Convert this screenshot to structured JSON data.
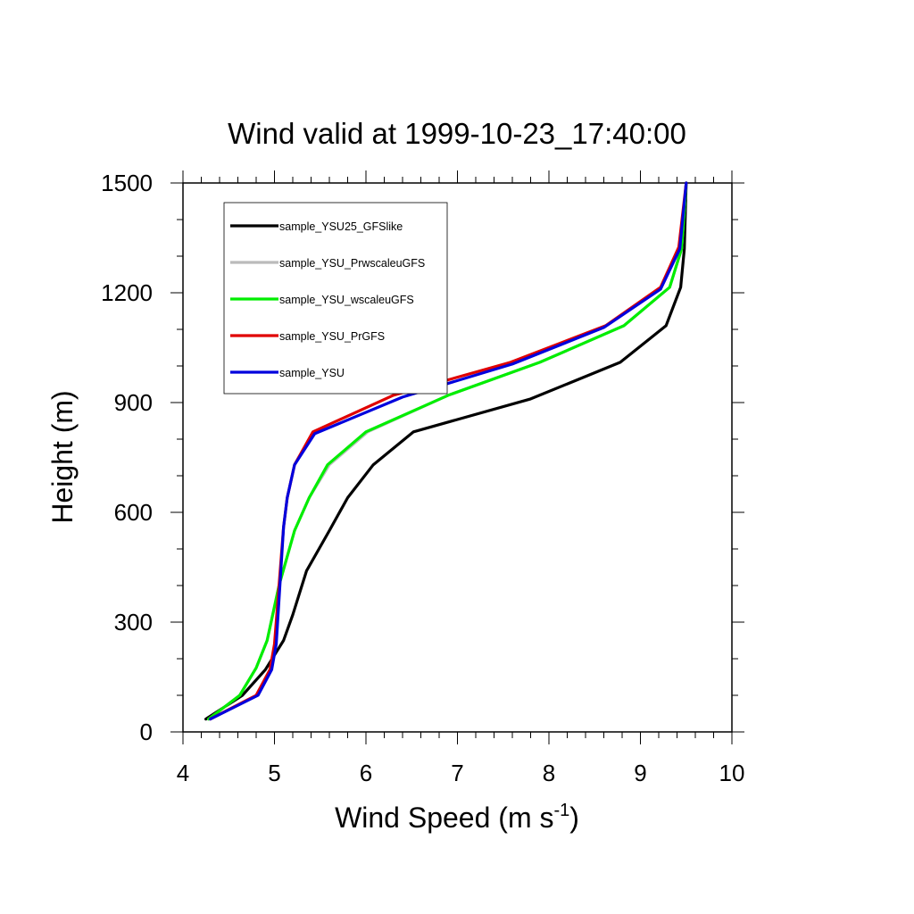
{
  "chart_data": {
    "type": "line",
    "title": "Wind valid at 1999-10-23_17:40:00",
    "xlabel": "Wind Speed (m s",
    "xlabel_sup": "-1",
    "xlabel_close": ")",
    "ylabel": "Height (m)",
    "xlim": [
      4,
      10
    ],
    "ylim": [
      0,
      1500
    ],
    "xticks": [
      "4",
      "5",
      "6",
      "7",
      "8",
      "9",
      "10"
    ],
    "yticks": [
      "0",
      "300",
      "600",
      "900",
      "1200",
      "1500"
    ],
    "grid": false,
    "legend_position": "top-left",
    "series": [
      {
        "name": "sample_YSU25_GFSlike",
        "color": "#000000",
        "x": [
          4.25,
          4.65,
          4.9,
          5.1,
          5.2,
          5.35,
          5.6,
          5.8,
          6.08,
          6.52,
          7.8,
          8.78,
          9.28,
          9.44,
          9.48,
          9.5
        ],
        "y": [
          35,
          100,
          170,
          250,
          320,
          440,
          550,
          640,
          730,
          820,
          910,
          1010,
          1110,
          1215,
          1320,
          1500
        ]
      },
      {
        "name": "sample_YSU_PrwscaleuGFS",
        "color": "#bbbbbb",
        "x": [
          4.28,
          4.62,
          4.8,
          4.92,
          5.05,
          5.22,
          5.38,
          5.6,
          6.02,
          6.9,
          7.9,
          8.82,
          9.32,
          9.45,
          9.5
        ],
        "y": [
          35,
          100,
          175,
          250,
          400,
          550,
          640,
          730,
          820,
          920,
          1010,
          1110,
          1215,
          1320,
          1500
        ]
      },
      {
        "name": "sample_YSU_wscaleuGFS",
        "color": "#00ee00",
        "x": [
          4.28,
          4.62,
          4.8,
          4.92,
          5.05,
          5.22,
          5.38,
          5.58,
          6.0,
          6.9,
          7.9,
          8.82,
          9.32,
          9.45,
          9.5
        ],
        "y": [
          35,
          100,
          175,
          250,
          400,
          550,
          640,
          730,
          820,
          920,
          1010,
          1110,
          1215,
          1320,
          1500
        ]
      },
      {
        "name": "sample_YSU_PrGFS",
        "color": "#e00000",
        "x": [
          4.3,
          4.8,
          4.95,
          5.0,
          5.05,
          5.1,
          5.14,
          5.22,
          5.42,
          6.3,
          7.58,
          8.62,
          9.22,
          9.42,
          9.5
        ],
        "y": [
          35,
          100,
          170,
          240,
          400,
          560,
          640,
          730,
          820,
          920,
          1010,
          1110,
          1215,
          1325,
          1500
        ]
      },
      {
        "name": "sample_YSU",
        "color": "#0000dd",
        "x": [
          4.3,
          4.82,
          4.97,
          5.02,
          5.06,
          5.1,
          5.14,
          5.22,
          5.44,
          6.4,
          7.6,
          8.6,
          9.22,
          9.43,
          9.5
        ],
        "y": [
          35,
          100,
          170,
          240,
          400,
          560,
          640,
          730,
          815,
          915,
          1005,
          1105,
          1210,
          1320,
          1500
        ]
      }
    ]
  }
}
